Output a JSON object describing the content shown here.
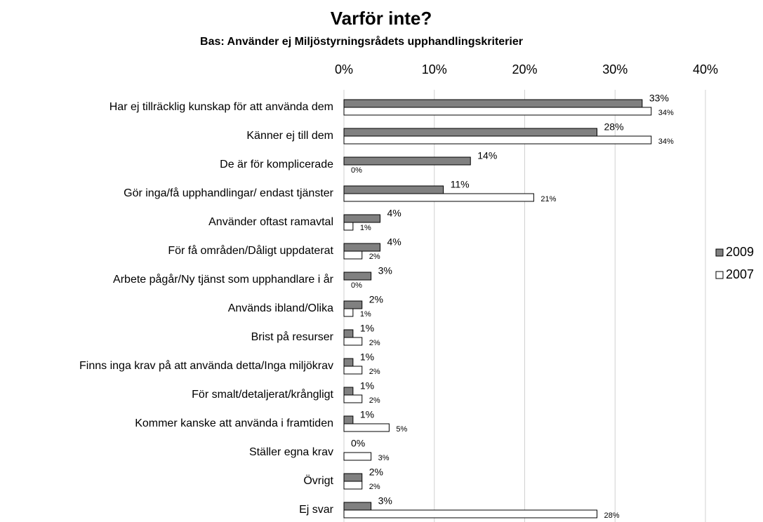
{
  "chart_data": {
    "type": "hbar",
    "title": "Varför inte?",
    "subtitle": "Bas: Använder ej Miljöstyrningsrådets upphandlingskriterier",
    "categories": [
      "Har ej tillräcklig kunskap för att använda dem",
      "Känner ej till dem",
      "De är för komplicerade",
      "Gör inga/få upphandlingar/ endast tjänster",
      "Använder oftast ramavtal",
      "För få områden/Dåligt uppdaterat",
      "Arbete pågår/Ny tjänst som upphandlare i år",
      "Används ibland/Olika",
      "Brist på resurser",
      "Finns inga krav på att använda detta/Inga miljökrav",
      "För smalt/detaljerat/krångligt",
      "Kommer kanske att använda i framtiden",
      "Ställer egna krav",
      "Övrigt",
      "Ej svar"
    ],
    "series": [
      {
        "name": "2009",
        "color": "#808080",
        "values": [
          33,
          28,
          14,
          11,
          4,
          4,
          3,
          2,
          1,
          1,
          1,
          1,
          0,
          2,
          3
        ],
        "value_labels": [
          "33%",
          "28%",
          "14%",
          "11%",
          "4%",
          "4%",
          "3%",
          "2%",
          "1%",
          "1%",
          "1%",
          "1%",
          "0%",
          "2%",
          "3%"
        ]
      },
      {
        "name": "2007",
        "color": "#ffffff",
        "values": [
          34,
          34,
          0,
          21,
          1,
          2,
          0,
          1,
          2,
          2,
          2,
          5,
          3,
          2,
          28
        ],
        "value_labels": [
          "34%",
          "34%",
          "0%",
          "21%",
          "1%",
          "2%",
          "0%",
          "1%",
          "2%",
          "2%",
          "2%",
          "5%",
          "3%",
          "2%",
          "28%"
        ]
      }
    ],
    "xlim": [
      0,
      40
    ],
    "xticks": [
      {
        "value": 0,
        "label": "0%"
      },
      {
        "value": 10,
        "label": "10%"
      },
      {
        "value": 20,
        "label": "20%"
      },
      {
        "value": 30,
        "label": "30%"
      },
      {
        "value": 40,
        "label": "40%"
      }
    ],
    "grid": true,
    "legend": "right"
  }
}
